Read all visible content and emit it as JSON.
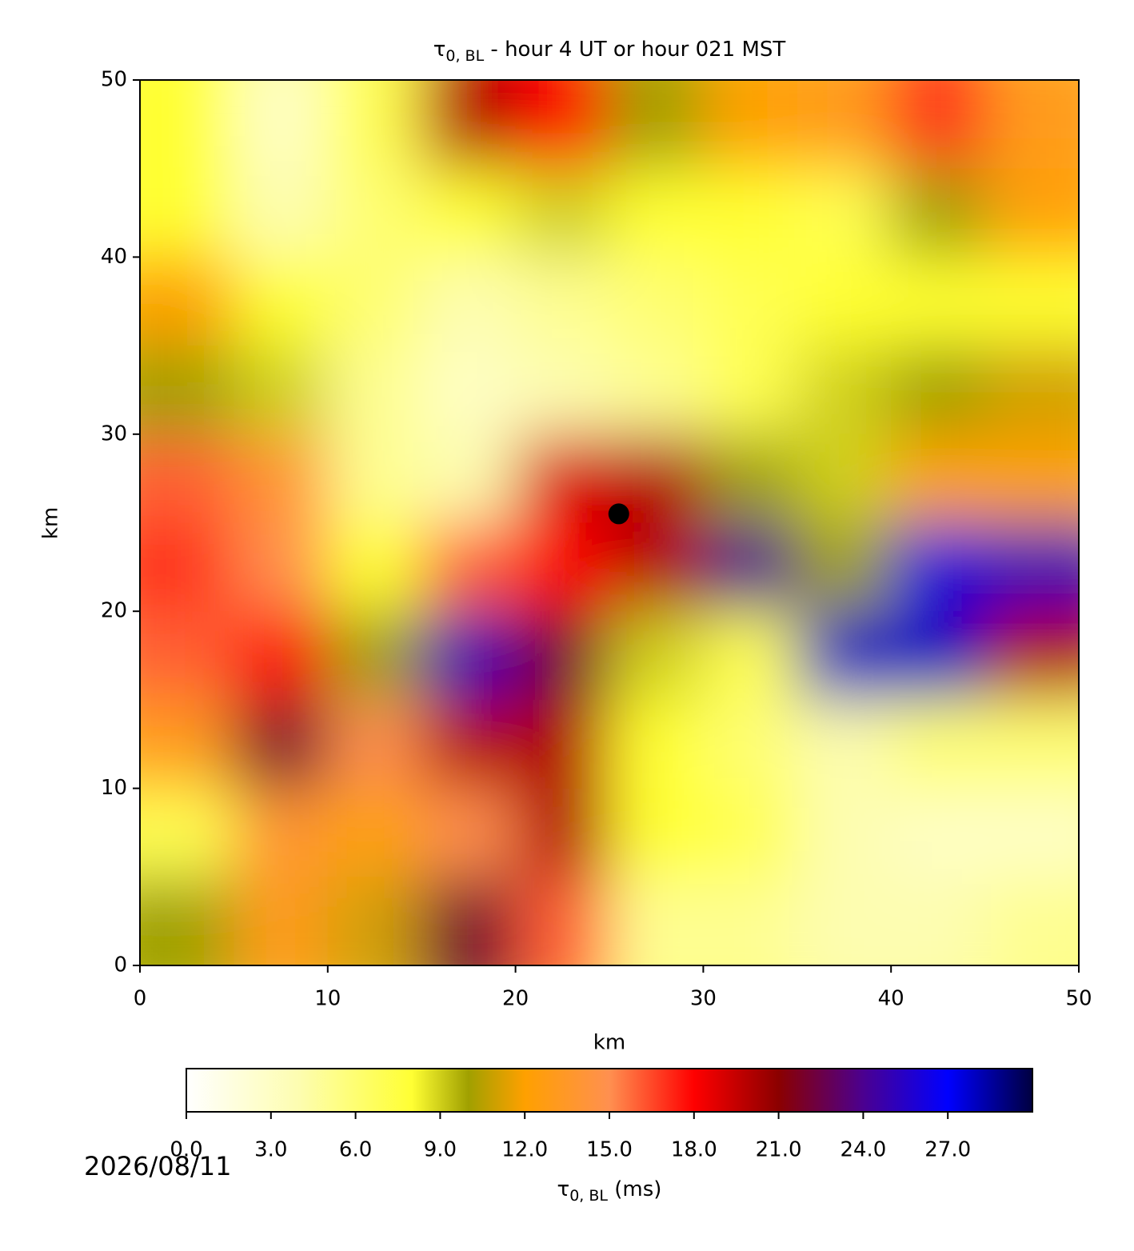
{
  "chart_data": {
    "type": "heatmap",
    "title": {
      "symbol": "τ",
      "subscript": "0, BL",
      "text": " - hour 4 UT or hour 021 MST"
    },
    "xlabel": "km",
    "ylabel": "km",
    "xlim": [
      0,
      50
    ],
    "ylim": [
      0,
      50
    ],
    "xticks": [
      0,
      10,
      20,
      30,
      40,
      50
    ],
    "yticks": [
      0,
      10,
      20,
      30,
      40,
      50
    ],
    "x": [
      2.5,
      7.5,
      12.5,
      17.5,
      22.5,
      27.5,
      32.5,
      37.5,
      42.5,
      47.5
    ],
    "y": [
      2.5,
      7.5,
      12.5,
      17.5,
      22.5,
      27.5,
      32.5,
      37.5,
      42.5,
      47.5
    ],
    "z": [
      [
        10,
        13,
        11,
        22,
        16,
        5,
        5,
        4,
        4,
        5
      ],
      [
        7,
        14,
        12,
        15,
        20,
        8,
        7,
        4,
        3,
        3
      ],
      [
        13,
        22,
        15,
        20,
        20,
        8,
        6,
        4,
        6,
        6
      ],
      [
        16,
        18,
        10,
        25,
        22,
        9,
        7,
        28,
        28,
        20
      ],
      [
        17,
        15,
        8,
        16,
        18,
        20,
        24,
        10,
        26,
        25
      ],
      [
        16,
        14,
        5,
        4,
        19,
        20,
        10,
        9,
        12,
        12
      ],
      [
        10,
        9,
        5,
        3,
        4,
        5,
        7,
        9,
        10,
        11
      ],
      [
        12,
        8,
        6,
        4,
        5,
        6,
        7,
        8,
        8,
        8
      ],
      [
        8,
        4,
        6,
        8,
        9,
        8,
        8,
        7,
        10,
        12
      ],
      [
        8,
        3,
        7,
        20,
        18,
        10,
        12,
        13,
        17,
        13
      ]
    ],
    "marker": {
      "x": 25.5,
      "y": 25.5,
      "color": "#000000"
    },
    "colorbar": {
      "clim": [
        0,
        30
      ],
      "ticks": [
        {
          "value": 0,
          "label": "0.0"
        },
        {
          "value": 3,
          "label": "3.0"
        },
        {
          "value": 6,
          "label": "6.0"
        },
        {
          "value": 9,
          "label": "9.0"
        },
        {
          "value": 12,
          "label": "12.0"
        },
        {
          "value": 15,
          "label": "15.0"
        },
        {
          "value": 18,
          "label": "18.0"
        },
        {
          "value": 21,
          "label": "21.0"
        },
        {
          "value": 24,
          "label": "24.0"
        },
        {
          "value": 27,
          "label": "27.0"
        }
      ],
      "label": {
        "symbol": "τ",
        "subscript": "0, BL",
        "text": " (ms)"
      },
      "colormap": [
        {
          "value": 0,
          "color": "#ffffff"
        },
        {
          "value": 4,
          "color": "#fdfdb0"
        },
        {
          "value": 8,
          "color": "#ffff33"
        },
        {
          "value": 10,
          "color": "#a0a000"
        },
        {
          "value": 12,
          "color": "#ffa000"
        },
        {
          "value": 15,
          "color": "#ff9050"
        },
        {
          "value": 18,
          "color": "#ff0000"
        },
        {
          "value": 21,
          "color": "#8b0000"
        },
        {
          "value": 24,
          "color": "#4b0090"
        },
        {
          "value": 27,
          "color": "#0000ff"
        },
        {
          "value": 30,
          "color": "#000040"
        }
      ]
    },
    "date": "2026/08/11"
  }
}
